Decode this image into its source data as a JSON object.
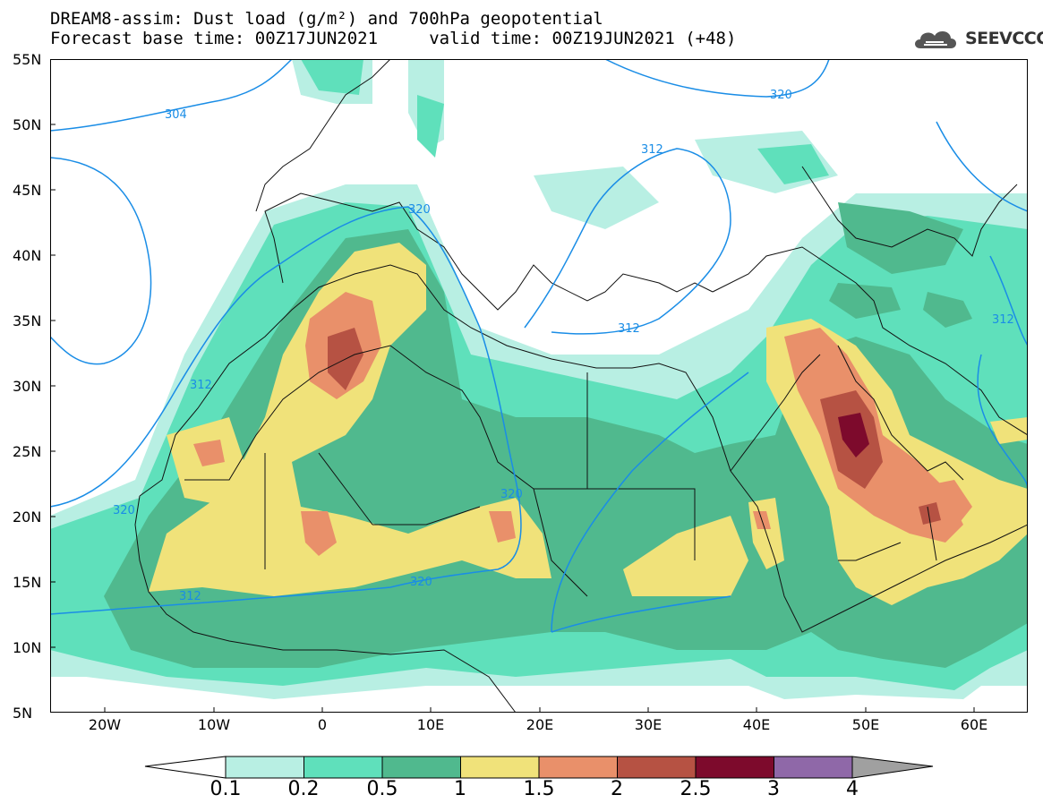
{
  "title": {
    "line1": "DREAM8-assim: Dust load (g/m²) and 700hPa geopotential",
    "line2": "Forecast base time: 00Z17JUN2021     valid time: 00Z19JUN2021 (+48)"
  },
  "logo": {
    "text": "SEEVCCC",
    "icon": "cloud-icon"
  },
  "axes": {
    "lat_labels": [
      "55N",
      "50N",
      "45N",
      "40N",
      "35N",
      "30N",
      "25N",
      "20N",
      "15N",
      "10N",
      "5N"
    ],
    "lon_labels": [
      "20W",
      "10W",
      "0",
      "10E",
      "20E",
      "30E",
      "40E",
      "50E",
      "60E"
    ]
  },
  "map": {
    "extent": {
      "lon": [
        -25,
        65
      ],
      "lat": [
        5,
        55
      ]
    },
    "geopotential_labels": [
      "304",
      "312",
      "320",
      "320",
      "312",
      "312",
      "312",
      "320",
      "320",
      "320",
      "312"
    ]
  },
  "colorbar": {
    "colors": [
      "#ffffff",
      "#b8efe3",
      "#5fe0bb",
      "#50b98e",
      "#f0e27a",
      "#e9906a",
      "#b65243",
      "#7d0a2c",
      "#8f68a8",
      "#a0a0a0"
    ],
    "labels": [
      "0.1",
      "0.2",
      "0.5",
      "1",
      "1.5",
      "2",
      "2.5",
      "3",
      "4"
    ]
  }
}
